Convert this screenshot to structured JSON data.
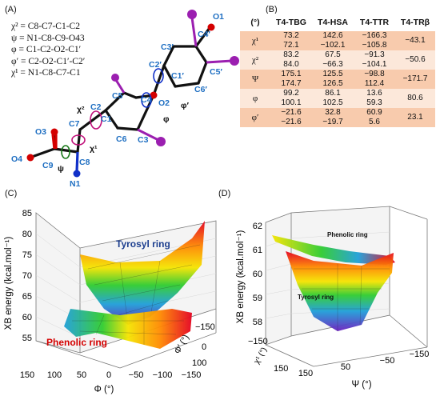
{
  "panels": {
    "a": "(A)",
    "b": "(B)",
    "c": "(C)",
    "d": "(D)"
  },
  "definitions": [
    "χ² = C8-C7-C1-C2",
    "ψ = N1-C8-C9-O43",
    "φ = C1-C2-O2-C1′",
    "φ′ = C2-O2-C1′-C2′",
    "χ¹ = N1-C8-C7-C1"
  ],
  "molecule": {
    "atoms": [
      "O1",
      "C4′",
      "C3′",
      "C5′",
      "C2′",
      "C6′",
      "C1′",
      "O2",
      "C4",
      "C5",
      "C2",
      "C3",
      "C1",
      "C6",
      "C7",
      "C8",
      "O3",
      "C9",
      "O4",
      "N1"
    ],
    "torsions": [
      "χ²",
      "φ′",
      "φ",
      "χ¹",
      "ψ"
    ]
  },
  "table": {
    "headers": [
      "(°)",
      "T4-TBG",
      "T4-HSA",
      "T4-TTR",
      "T4-TRβ"
    ],
    "rows": [
      {
        "label": "χ¹",
        "tbg": [
          "73.2",
          "72.1"
        ],
        "hsa": [
          "142.6",
          "−102.1"
        ],
        "ttr": [
          "−166.3",
          "−105.8"
        ],
        "trb": "−43.1"
      },
      {
        "label": "χ²",
        "tbg": [
          "83.2",
          "84.0"
        ],
        "hsa": [
          "67.5",
          "−66.3"
        ],
        "ttr": [
          "−91.3",
          "−104.1"
        ],
        "trb": "−50.6"
      },
      {
        "label": "Ψ",
        "tbg": [
          "175.1",
          "174.7"
        ],
        "hsa": [
          "125.5",
          "126.5"
        ],
        "ttr": [
          "−98.8",
          "112.4"
        ],
        "trb": "−171.7"
      },
      {
        "label": "φ",
        "tbg": [
          "99.2",
          "100.1"
        ],
        "hsa": [
          "86.1",
          "102.5"
        ],
        "ttr": [
          "13.6",
          "59.3"
        ],
        "trb": "80.6"
      },
      {
        "label": "φ′",
        "tbg": [
          "−21.6",
          "−21.6"
        ],
        "hsa": [
          "32.8",
          "−19.7"
        ],
        "ttr": [
          "60.9",
          "5.6"
        ],
        "trb": "23.1"
      }
    ]
  },
  "chart_c": {
    "ylabel": "XB energy (kcal.mol⁻¹)",
    "yticks": [
      "85",
      "80",
      "75",
      "70",
      "65",
      "60",
      "55"
    ],
    "xlabel": "Φ (°)",
    "xticks": [
      "150",
      "100",
      "50",
      "0",
      "−50",
      "−100",
      "−150"
    ],
    "zlabel": "Φ′ (°)",
    "zticks": [
      "−150",
      "0",
      "100"
    ],
    "annotations": [
      "Tyrosyl ring",
      "Phenolic ring"
    ]
  },
  "chart_d": {
    "ylabel": "XB energy (kcal.mol⁻¹)",
    "yticks": [
      "62",
      "61",
      "60",
      "59",
      "58"
    ],
    "xlabel": "Ψ (°)",
    "xticks": [
      "150",
      "50",
      "−50",
      "−150"
    ],
    "zlabel": "χ¹ (°)",
    "zticks": [
      "−150",
      "150"
    ],
    "annotations": [
      "Phenolic ring",
      "Tyrosyl ring"
    ]
  },
  "colors": {
    "carbon": "#111111",
    "oxygen": "#d40000",
    "iodine": "#9b1fb0",
    "nitrogen": "#1030c8",
    "label_blue": "#1f6fc2",
    "tyrosyl_label": "#1d3f8f",
    "phenolic_label": "#d40000"
  }
}
